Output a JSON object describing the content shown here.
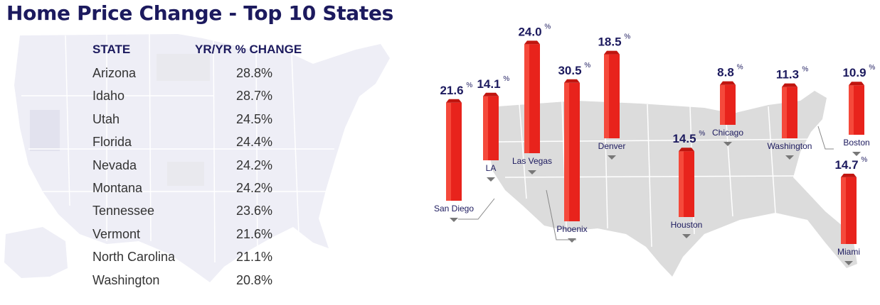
{
  "title": "Home Price Change - Top 10 States",
  "table": {
    "headers": {
      "state": "STATE",
      "change": "YR/YR % CHANGE"
    },
    "rows": [
      {
        "state": "Arizona",
        "change": "28.8%"
      },
      {
        "state": "Idaho",
        "change": "28.7%"
      },
      {
        "state": "Utah",
        "change": "24.5%"
      },
      {
        "state": "Florida",
        "change": "24.4%"
      },
      {
        "state": "Nevada",
        "change": "24.2%"
      },
      {
        "state": "Montana",
        "change": "24.2%"
      },
      {
        "state": "Tennessee",
        "change": "23.6%"
      },
      {
        "state": "Vermont",
        "change": "21.6%"
      },
      {
        "state": "North Carolina",
        "change": "21.1%"
      },
      {
        "state": "Washington",
        "change": "20.8%"
      }
    ]
  },
  "chart_data": {
    "type": "bar",
    "title": "",
    "categories": [
      "San Diego",
      "LA",
      "Las Vegas",
      "Phoenix",
      "Denver",
      "Houston",
      "Chicago",
      "Washington",
      "Boston",
      "Miami"
    ],
    "values": [
      21.6,
      14.1,
      24.0,
      30.5,
      18.5,
      14.5,
      8.8,
      11.3,
      10.9,
      14.7
    ],
    "value_labels": [
      "21.6",
      "14.1",
      "24.0",
      "30.5",
      "18.5",
      "14.5",
      "8.8",
      "11.3",
      "10.9",
      "14.7"
    ],
    "unit": "%",
    "bar_color": "#e8231c"
  },
  "colors": {
    "title": "#1c1a5e",
    "bar": "#e8231c",
    "map": "#dcdcdc",
    "label": "#1c1a5e"
  }
}
